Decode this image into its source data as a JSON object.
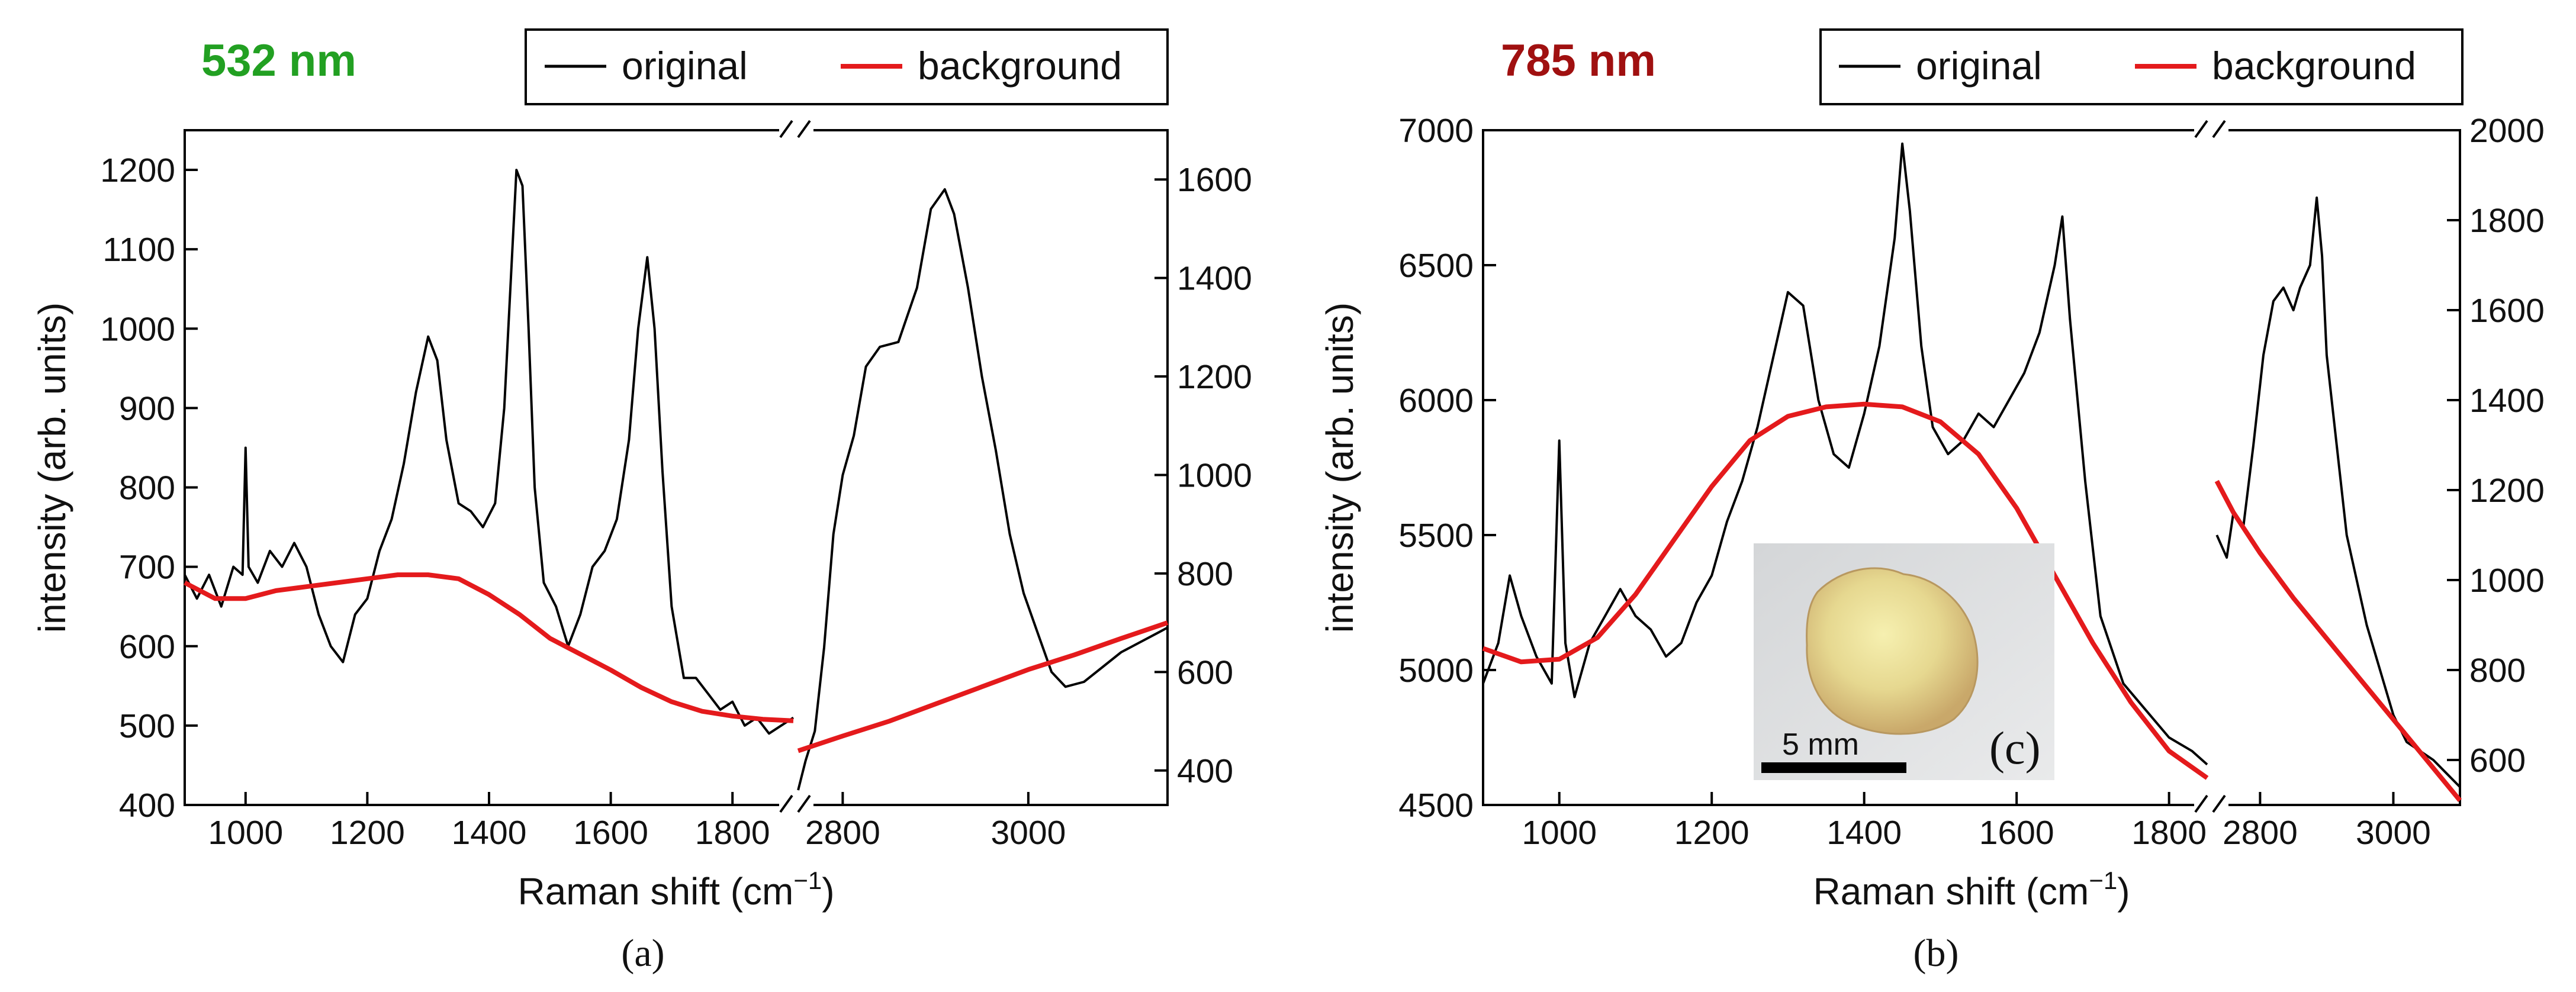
{
  "chart_data": [
    {
      "type": "line",
      "panel_caption": "(a)",
      "laser_label": "532 nm",
      "laser_color": "#22a022",
      "xlabel": "Raman shift (cm",
      "xlabel_sup": "−1",
      "xlabel_close": ")",
      "ylabel": "intensity (arb. units)",
      "legend": [
        "original",
        "background"
      ],
      "series_colors": {
        "original": "#000000",
        "background": "#e41a1c"
      },
      "segments": [
        {
          "side": "left",
          "xlim": [
            900,
            1900
          ],
          "ylim": [
            400,
            1250
          ],
          "xticks": [
            1000,
            1200,
            1400,
            1600,
            1800
          ],
          "yticks": [
            400,
            500,
            600,
            700,
            800,
            900,
            1000,
            1100,
            1200
          ],
          "original": [
            [
              900,
              690
            ],
            [
              920,
              660
            ],
            [
              940,
              690
            ],
            [
              960,
              650
            ],
            [
              980,
              700
            ],
            [
              995,
              690
            ],
            [
              1000,
              850
            ],
            [
              1005,
              700
            ],
            [
              1020,
              680
            ],
            [
              1040,
              720
            ],
            [
              1060,
              700
            ],
            [
              1080,
              730
            ],
            [
              1100,
              700
            ],
            [
              1120,
              640
            ],
            [
              1140,
              600
            ],
            [
              1160,
              580
            ],
            [
              1180,
              640
            ],
            [
              1200,
              660
            ],
            [
              1220,
              720
            ],
            [
              1240,
              760
            ],
            [
              1260,
              830
            ],
            [
              1280,
              920
            ],
            [
              1300,
              990
            ],
            [
              1315,
              960
            ],
            [
              1330,
              860
            ],
            [
              1350,
              780
            ],
            [
              1370,
              770
            ],
            [
              1390,
              750
            ],
            [
              1410,
              780
            ],
            [
              1425,
              900
            ],
            [
              1435,
              1050
            ],
            [
              1445,
              1200
            ],
            [
              1455,
              1180
            ],
            [
              1465,
              1000
            ],
            [
              1475,
              800
            ],
            [
              1490,
              680
            ],
            [
              1510,
              650
            ],
            [
              1530,
              600
            ],
            [
              1550,
              640
            ],
            [
              1570,
              700
            ],
            [
              1590,
              720
            ],
            [
              1610,
              760
            ],
            [
              1630,
              860
            ],
            [
              1645,
              1000
            ],
            [
              1660,
              1090
            ],
            [
              1672,
              1000
            ],
            [
              1685,
              820
            ],
            [
              1700,
              650
            ],
            [
              1720,
              560
            ],
            [
              1740,
              560
            ],
            [
              1760,
              540
            ],
            [
              1780,
              520
            ],
            [
              1800,
              530
            ],
            [
              1820,
              500
            ],
            [
              1840,
              510
            ],
            [
              1860,
              490
            ],
            [
              1880,
              500
            ],
            [
              1900,
              510
            ]
          ],
          "background": [
            [
              900,
              680
            ],
            [
              950,
              660
            ],
            [
              1000,
              660
            ],
            [
              1050,
              670
            ],
            [
              1100,
              675
            ],
            [
              1150,
              680
            ],
            [
              1200,
              685
            ],
            [
              1250,
              690
            ],
            [
              1300,
              690
            ],
            [
              1350,
              685
            ],
            [
              1400,
              665
            ],
            [
              1450,
              640
            ],
            [
              1500,
              610
            ],
            [
              1550,
              590
            ],
            [
              1600,
              570
            ],
            [
              1650,
              548
            ],
            [
              1700,
              530
            ],
            [
              1750,
              518
            ],
            [
              1800,
              512
            ],
            [
              1850,
              508
            ],
            [
              1900,
              506
            ]
          ]
        },
        {
          "side": "right",
          "xlim": [
            2750,
            3150
          ],
          "ylim": [
            330,
            1700
          ],
          "xticks": [
            2800,
            3000
          ],
          "yticks": [
            400,
            600,
            800,
            1000,
            1200,
            1400,
            1600
          ],
          "original": [
            [
              2752,
              360
            ],
            [
              2760,
              420
            ],
            [
              2770,
              480
            ],
            [
              2780,
              650
            ],
            [
              2790,
              880
            ],
            [
              2800,
              1000
            ],
            [
              2812,
              1080
            ],
            [
              2825,
              1220
            ],
            [
              2840,
              1260
            ],
            [
              2860,
              1270
            ],
            [
              2880,
              1380
            ],
            [
              2895,
              1540
            ],
            [
              2910,
              1580
            ],
            [
              2920,
              1530
            ],
            [
              2935,
              1380
            ],
            [
              2950,
              1200
            ],
            [
              2965,
              1050
            ],
            [
              2980,
              880
            ],
            [
              2995,
              760
            ],
            [
              3010,
              680
            ],
            [
              3025,
              600
            ],
            [
              3040,
              570
            ],
            [
              3060,
              580
            ],
            [
              3080,
              610
            ],
            [
              3100,
              640
            ],
            [
              3120,
              660
            ],
            [
              3140,
              680
            ],
            [
              3150,
              690
            ]
          ],
          "background": [
            [
              2752,
              440
            ],
            [
              2800,
              470
            ],
            [
              2850,
              500
            ],
            [
              2900,
              535
            ],
            [
              2950,
              570
            ],
            [
              3000,
              605
            ],
            [
              3050,
              635
            ],
            [
              3100,
              668
            ],
            [
              3150,
              700
            ]
          ]
        }
      ]
    },
    {
      "type": "line",
      "panel_caption": "(b)",
      "laser_label": "785 nm",
      "laser_color": "#a01010",
      "xlabel": "Raman shift (cm",
      "xlabel_sup": "−1",
      "xlabel_close": ")",
      "ylabel": "intensity (arb. units)",
      "legend": [
        "original",
        "background"
      ],
      "series_colors": {
        "original": "#000000",
        "background": "#e41a1c"
      },
      "inset": {
        "scale_label": "5 mm",
        "panel_label": "(c)"
      },
      "segments": [
        {
          "side": "left",
          "xlim": [
            900,
            1850
          ],
          "ylim": [
            4500,
            7000
          ],
          "xticks": [
            1000,
            1200,
            1400,
            1600,
            1800
          ],
          "yticks": [
            4500,
            5000,
            5500,
            6000,
            6500,
            7000
          ],
          "original": [
            [
              900,
              4950
            ],
            [
              920,
              5100
            ],
            [
              935,
              5350
            ],
            [
              950,
              5200
            ],
            [
              970,
              5050
            ],
            [
              990,
              4950
            ],
            [
              1000,
              5850
            ],
            [
              1008,
              5100
            ],
            [
              1020,
              4900
            ],
            [
              1040,
              5100
            ],
            [
              1060,
              5200
            ],
            [
              1080,
              5300
            ],
            [
              1100,
              5200
            ],
            [
              1120,
              5150
            ],
            [
              1140,
              5050
            ],
            [
              1160,
              5100
            ],
            [
              1180,
              5250
            ],
            [
              1200,
              5350
            ],
            [
              1220,
              5550
            ],
            [
              1240,
              5700
            ],
            [
              1260,
              5900
            ],
            [
              1280,
              6150
            ],
            [
              1300,
              6400
            ],
            [
              1320,
              6350
            ],
            [
              1340,
              6000
            ],
            [
              1360,
              5800
            ],
            [
              1380,
              5750
            ],
            [
              1400,
              5950
            ],
            [
              1420,
              6200
            ],
            [
              1440,
              6600
            ],
            [
              1450,
              6950
            ],
            [
              1460,
              6700
            ],
            [
              1475,
              6200
            ],
            [
              1490,
              5900
            ],
            [
              1510,
              5800
            ],
            [
              1530,
              5850
            ],
            [
              1550,
              5950
            ],
            [
              1570,
              5900
            ],
            [
              1590,
              6000
            ],
            [
              1610,
              6100
            ],
            [
              1630,
              6250
            ],
            [
              1650,
              6500
            ],
            [
              1660,
              6680
            ],
            [
              1670,
              6300
            ],
            [
              1690,
              5700
            ],
            [
              1710,
              5200
            ],
            [
              1740,
              4950
            ],
            [
              1770,
              4850
            ],
            [
              1800,
              4750
            ],
            [
              1830,
              4700
            ],
            [
              1850,
              4650
            ]
          ],
          "background": [
            [
              900,
              5080
            ],
            [
              950,
              5030
            ],
            [
              1000,
              5040
            ],
            [
              1050,
              5120
            ],
            [
              1100,
              5280
            ],
            [
              1150,
              5480
            ],
            [
              1200,
              5680
            ],
            [
              1250,
              5850
            ],
            [
              1300,
              5940
            ],
            [
              1350,
              5975
            ],
            [
              1400,
              5985
            ],
            [
              1450,
              5975
            ],
            [
              1500,
              5920
            ],
            [
              1550,
              5800
            ],
            [
              1600,
              5600
            ],
            [
              1650,
              5350
            ],
            [
              1700,
              5100
            ],
            [
              1750,
              4880
            ],
            [
              1800,
              4700
            ],
            [
              1850,
              4600
            ]
          ]
        },
        {
          "side": "right",
          "xlim": [
            2725,
            3100
          ],
          "ylim": [
            500,
            2000
          ],
          "xticks": [
            2800,
            3000
          ],
          "yticks": [
            600,
            800,
            1000,
            1200,
            1400,
            1600,
            1800,
            2000
          ],
          "original": [
            [
              2735,
              1100
            ],
            [
              2750,
              1050
            ],
            [
              2760,
              1150
            ],
            [
              2775,
              1120
            ],
            [
              2790,
              1300
            ],
            [
              2805,
              1500
            ],
            [
              2820,
              1620
            ],
            [
              2835,
              1650
            ],
            [
              2850,
              1600
            ],
            [
              2860,
              1650
            ],
            [
              2875,
              1700
            ],
            [
              2885,
              1850
            ],
            [
              2893,
              1720
            ],
            [
              2900,
              1500
            ],
            [
              2915,
              1300
            ],
            [
              2930,
              1100
            ],
            [
              2945,
              1000
            ],
            [
              2960,
              900
            ],
            [
              2980,
              800
            ],
            [
              3000,
              700
            ],
            [
              3020,
              640
            ],
            [
              3040,
              620
            ],
            [
              3060,
              600
            ],
            [
              3080,
              570
            ],
            [
              3100,
              540
            ]
          ],
          "background": [
            [
              2735,
              1220
            ],
            [
              2760,
              1150
            ],
            [
              2800,
              1060
            ],
            [
              2850,
              960
            ],
            [
              2900,
              870
            ],
            [
              2950,
              780
            ],
            [
              3000,
              690
            ],
            [
              3050,
              600
            ],
            [
              3100,
              510
            ]
          ]
        }
      ]
    }
  ]
}
